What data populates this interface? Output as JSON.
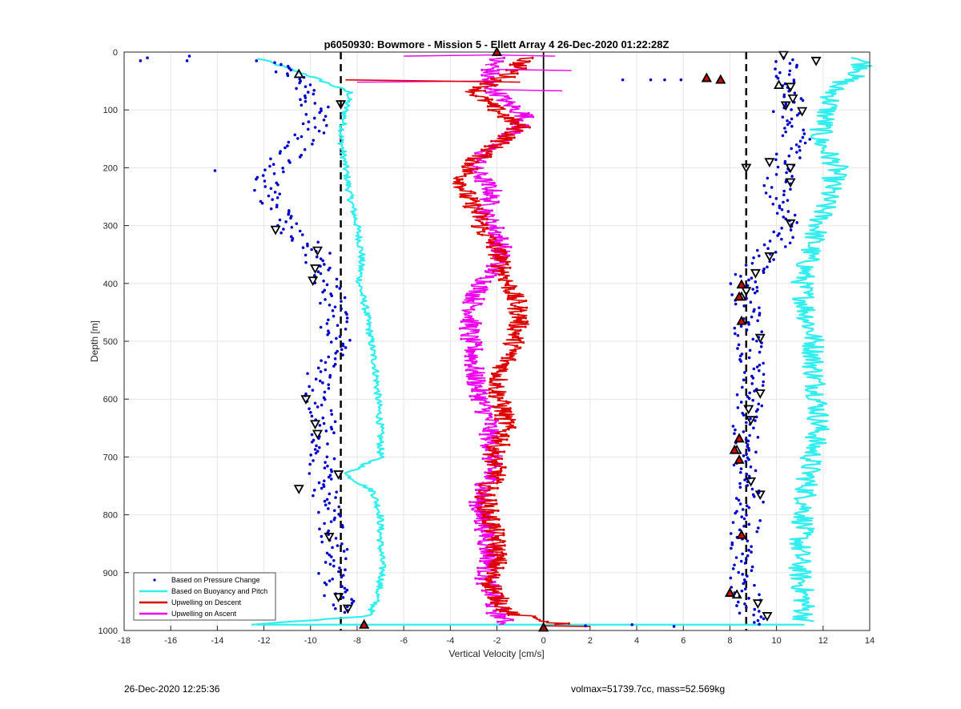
{
  "chart_data": {
    "type": "scatter",
    "title": "p6050930: Bowmore - Mission 5 - Ellett Array 4 26-Dec-2020 01:22:28Z",
    "xlabel": "Vertical Velocity [cm/s]",
    "ylabel": "Depth [m]",
    "xlim": [
      -18,
      14
    ],
    "ylim": [
      0,
      1000
    ],
    "y_reversed": true,
    "xticks": [
      -18,
      -16,
      -14,
      -12,
      -10,
      -8,
      -6,
      -4,
      -2,
      0,
      2,
      4,
      6,
      8,
      10,
      12,
      14
    ],
    "yticks": [
      0,
      100,
      200,
      300,
      400,
      500,
      600,
      700,
      800,
      900,
      1000
    ],
    "grid": true,
    "legend_position": "bottom-left",
    "reference_lines": [
      {
        "type": "vertical",
        "x": -8.7,
        "style": "dashed",
        "color": "#000000"
      },
      {
        "type": "vertical",
        "x": 8.7,
        "style": "dashed",
        "color": "#000000"
      },
      {
        "type": "vertical",
        "x": 0,
        "style": "solid",
        "color": "#000000"
      }
    ],
    "series": [
      {
        "name": "Based on Pressure Change",
        "style": "markers",
        "color": "#0000cc",
        "left_branch": {
          "depth": [
            15,
            40,
            80,
            100,
            140,
            180,
            210,
            240,
            280,
            310,
            340,
            380,
            420,
            460,
            500,
            540,
            580,
            620,
            660,
            700,
            740,
            780,
            820,
            860,
            900,
            940,
            970
          ],
          "x": [
            -11.8,
            -10.8,
            -10.2,
            -9.6,
            -10.0,
            -11.0,
            -11.8,
            -12.0,
            -11.2,
            -11.0,
            -9.8,
            -9.6,
            -9.1,
            -9.0,
            -8.9,
            -9.4,
            -9.8,
            -9.6,
            -9.4,
            -9.5,
            -9.6,
            -9.2,
            -9.1,
            -9.0,
            -9.1,
            -8.9,
            -8.3
          ]
        },
        "right_branch": {
          "depth": [
            10,
            40,
            80,
            110,
            150,
            200,
            230,
            260,
            300,
            340,
            380,
            400,
            440,
            480,
            520,
            560,
            600,
            640,
            680,
            720,
            760,
            800,
            840,
            880,
            920,
            960,
            990
          ],
          "x": [
            10.2,
            10.5,
            10.6,
            10.4,
            10.9,
            10.3,
            10.0,
            10.2,
            10.7,
            9.8,
            8.9,
            8.6,
            8.7,
            8.8,
            8.8,
            8.9,
            8.8,
            8.7,
            8.6,
            8.6,
            8.9,
            8.8,
            8.6,
            8.7,
            8.6,
            8.8,
            9.1
          ]
        },
        "outliers": [
          [
            -17.3,
            15
          ],
          [
            -17.0,
            10
          ],
          [
            -15.3,
            15
          ],
          [
            -15.2,
            7
          ],
          [
            -14.1,
            205
          ],
          [
            3.4,
            48
          ],
          [
            4.6,
            48
          ],
          [
            5.2,
            48
          ],
          [
            5.9,
            48
          ],
          [
            1.8,
            992
          ],
          [
            3.8,
            990
          ],
          [
            5.6,
            993
          ]
        ]
      },
      {
        "name": "Based on Buoyancy and Pitch",
        "style": "line",
        "color": "#33eeee",
        "left_branch": {
          "depth": [
            10,
            40,
            70,
            100,
            150,
            200,
            250,
            300,
            350,
            400,
            450,
            500,
            550,
            600,
            650,
            700,
            730,
            760,
            800,
            850,
            900,
            950,
            975,
            990
          ],
          "x": [
            -12.3,
            -10.1,
            -8.3,
            -8.5,
            -8.7,
            -8.5,
            -8.3,
            -8.0,
            -7.8,
            -7.9,
            -7.6,
            -7.4,
            -7.2,
            -7.1,
            -7.0,
            -7.0,
            -8.5,
            -7.3,
            -7.0,
            -7.0,
            -6.9,
            -7.2,
            -7.5,
            -12.5
          ]
        },
        "right_branch": {
          "depth": [
            10,
            30,
            60,
            100,
            150,
            200,
            250,
            300,
            350,
            400,
            450,
            500,
            550,
            600,
            650,
            700,
            750,
            800,
            850,
            900,
            950,
            985
          ],
          "x": [
            13.6,
            13.8,
            12.5,
            12.2,
            11.8,
            12.6,
            12.2,
            11.8,
            11.4,
            11.1,
            11.3,
            11.6,
            11.6,
            11.8,
            11.8,
            11.5,
            11.3,
            11.2,
            11.0,
            11.0,
            11.2,
            11.2
          ]
        },
        "bottom_span": {
          "depth": 990,
          "x": [
            -12.3,
            11.2
          ]
        }
      },
      {
        "name": "Upwelling on Descent",
        "style": "line-markers",
        "color": "#dd0000",
        "profile": {
          "depth": [
            10,
            40,
            70,
            100,
            130,
            160,
            190,
            220,
            250,
            280,
            310,
            340,
            370,
            400,
            430,
            460,
            490,
            520,
            550,
            580,
            610,
            640,
            670,
            700,
            730,
            760,
            790,
            820,
            850,
            880,
            910,
            940,
            970,
            990
          ],
          "x": [
            -0.7,
            -1.5,
            -3.0,
            -2.0,
            -1.0,
            -2.0,
            -3.0,
            -3.5,
            -3.3,
            -2.8,
            -2.6,
            -2.0,
            -1.8,
            -1.5,
            -1.2,
            -1.0,
            -1.2,
            -1.4,
            -1.8,
            -2.0,
            -1.8,
            -1.6,
            -1.8,
            -2.2,
            -2.0,
            -2.5,
            -2.4,
            -2.2,
            -2.0,
            -2.0,
            -2.3,
            -2.0,
            -1.5,
            0.9
          ]
        }
      },
      {
        "name": "Upwelling on Ascent",
        "style": "line-markers",
        "color": "#ee00ee",
        "profile": {
          "depth": [
            10,
            50,
            90,
            110,
            140,
            170,
            200,
            240,
            280,
            310,
            340,
            370,
            400,
            430,
            460,
            490,
            520,
            550,
            580,
            610,
            640,
            670,
            700,
            730,
            760,
            790,
            820,
            850,
            880,
            910,
            940,
            970,
            990
          ],
          "x": [
            -2.0,
            -2.5,
            -1.5,
            -0.8,
            -1.3,
            -2.5,
            -3.0,
            -2.2,
            -2.5,
            -2.0,
            -1.8,
            -2.0,
            -2.6,
            -3.0,
            -3.1,
            -3.2,
            -3.0,
            -3.0,
            -2.8,
            -2.6,
            -2.3,
            -2.3,
            -2.2,
            -2.3,
            -2.6,
            -2.8,
            -2.5,
            -2.4,
            -2.3,
            -2.5,
            -2.2,
            -2.0,
            -1.5
          ]
        }
      }
    ],
    "markers": {
      "up_triangles": [
        [
          -10.5,
          38
        ],
        [
          7.0,
          45
        ],
        [
          7.6,
          48
        ],
        [
          10.1,
          57
        ],
        [
          -7.7,
          990
        ],
        [
          0.0,
          995
        ],
        [
          8.3,
          688
        ],
        [
          8.4,
          668
        ],
        [
          8.5,
          423
        ],
        [
          8.3,
          938
        ]
      ],
      "down_triangles": [
        [
          10.3,
          5
        ],
        [
          11.7,
          15
        ],
        [
          -8.7,
          90
        ],
        [
          10.6,
          60
        ],
        [
          10.7,
          80
        ],
        [
          10.4,
          92
        ],
        [
          11.1,
          102
        ],
        [
          9.7,
          190
        ],
        [
          10.6,
          200
        ],
        [
          10.6,
          225
        ],
        [
          8.7,
          200
        ],
        [
          10.6,
          296
        ],
        [
          9.7,
          353
        ],
        [
          9.1,
          382
        ],
        [
          8.7,
          413
        ],
        [
          9.3,
          494
        ],
        [
          9.3,
          590
        ],
        [
          9.3,
          765
        ],
        [
          8.9,
          742
        ],
        [
          8.9,
          636
        ],
        [
          8.8,
          617
        ],
        [
          9.2,
          953
        ],
        [
          -9.7,
          343
        ],
        [
          -9.8,
          374
        ],
        [
          -9.9,
          395
        ],
        [
          -10.2,
          600
        ],
        [
          -9.8,
          643
        ],
        [
          -9.7,
          660
        ],
        [
          -8.8,
          730
        ],
        [
          -10.5,
          755
        ],
        [
          -9.2,
          838
        ],
        [
          -8.8,
          942
        ],
        [
          -8.4,
          962
        ],
        [
          9.6,
          975
        ],
        [
          -11.5,
          307
        ]
      ],
      "red_filled": [
        [
          7.0,
          45
        ],
        [
          7.6,
          48
        ],
        [
          8.5,
          402
        ],
        [
          8.4,
          423
        ],
        [
          8.5,
          465
        ],
        [
          8.4,
          668
        ],
        [
          8.2,
          688
        ],
        [
          8.4,
          705
        ],
        [
          8.5,
          835
        ],
        [
          8.0,
          935
        ],
        [
          -7.7,
          990
        ],
        [
          0.0,
          995
        ],
        [
          -2.0,
          0
        ]
      ]
    }
  },
  "footer": {
    "left": "26-Dec-2020 12:25:36",
    "right": "volmax=51739.7cc, mass=52.569kg"
  }
}
